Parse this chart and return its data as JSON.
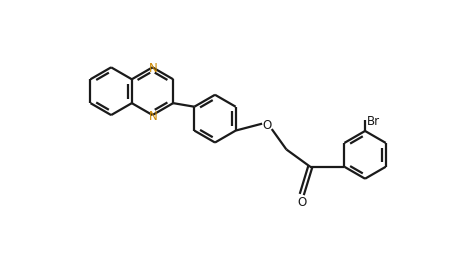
{
  "bg_color": "#ffffff",
  "bond_color": "#1a1a1a",
  "N_color": "#cc8800",
  "lw": 1.6,
  "figsize": [
    4.64,
    2.55
  ],
  "dpi": 100,
  "xlim": [
    0,
    9.28
  ],
  "ylim": [
    0,
    5.1
  ],
  "ring_r": 0.62
}
